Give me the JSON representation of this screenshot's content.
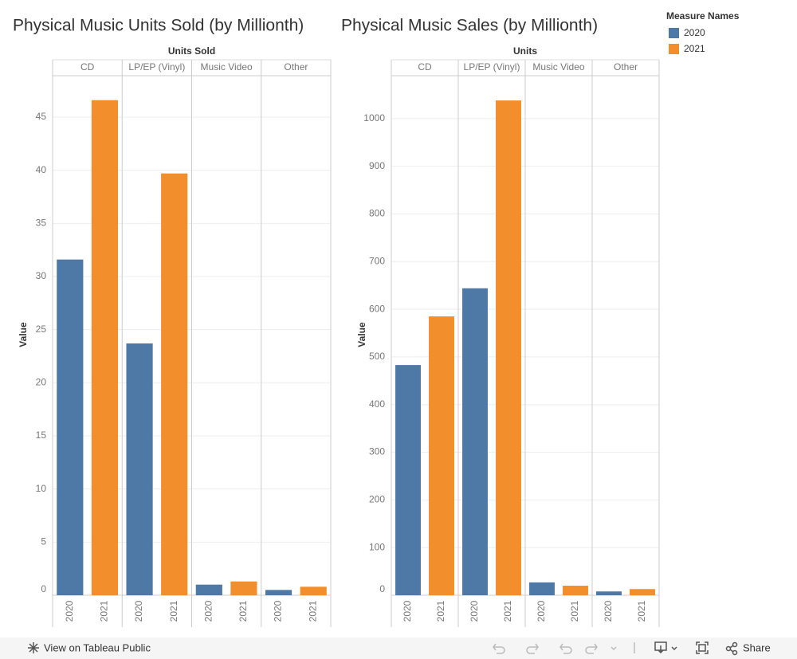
{
  "chart_data": [
    {
      "type": "bar",
      "title": "Physical Music Units Sold (by Millionth)",
      "column_header": "Units Sold",
      "y_label": "Value",
      "categories": [
        "CD",
        "LP/EP (Vinyl)",
        "Music Video",
        "Other"
      ],
      "series": [
        {
          "name": "2020",
          "color": "#4e79a7",
          "values": [
            31.6,
            23.7,
            1.0,
            0.5
          ]
        },
        {
          "name": "2021",
          "color": "#f28e2b",
          "values": [
            46.6,
            39.7,
            1.3,
            0.8
          ]
        }
      ],
      "ylim": [
        0,
        48.9
      ],
      "yticks": [
        0,
        5,
        10,
        15,
        20,
        25,
        30,
        35,
        40,
        45
      ],
      "grid": true
    },
    {
      "type": "bar",
      "title": "Physical Music Sales (by Millionth)",
      "column_header": "Units",
      "y_label": "Value",
      "categories": [
        "CD",
        "LP/EP (Vinyl)",
        "Music Video",
        "Other"
      ],
      "series": [
        {
          "name": "2020",
          "color": "#4e79a7",
          "values": [
            483,
            644,
            27,
            8
          ]
        },
        {
          "name": "2021",
          "color": "#f28e2b",
          "values": [
            585,
            1038,
            20,
            13
          ]
        }
      ],
      "ylim": [
        0,
        1090
      ],
      "yticks": [
        0,
        100,
        200,
        300,
        400,
        500,
        600,
        700,
        800,
        900,
        1000
      ],
      "grid": true
    }
  ],
  "legend": {
    "title": "Measure Names"
  },
  "toolbar": {
    "view_link": "View on Tableau Public",
    "share": "Share"
  }
}
